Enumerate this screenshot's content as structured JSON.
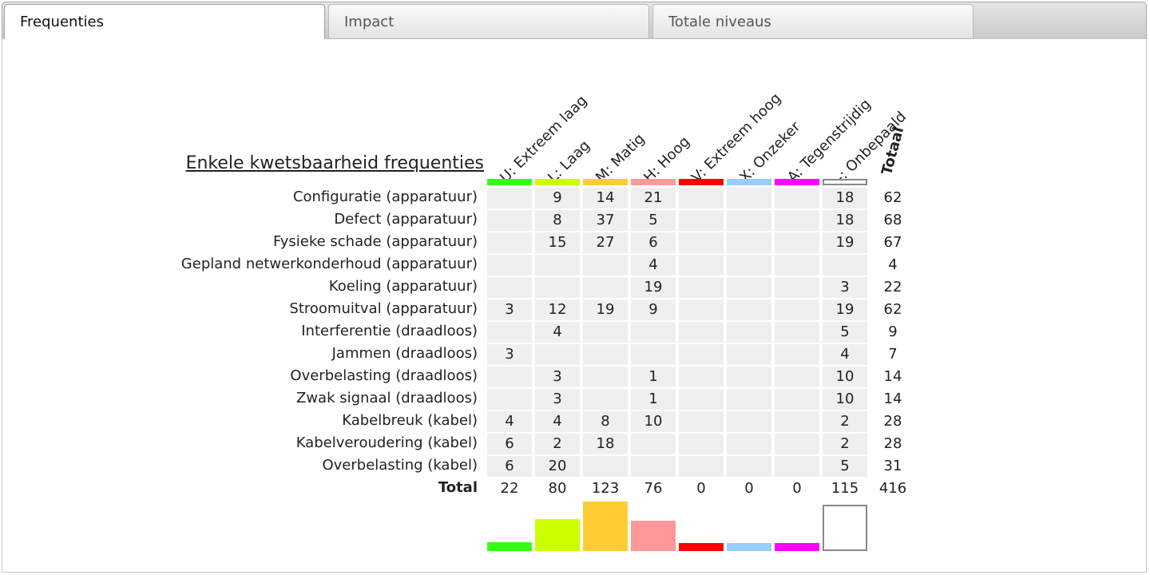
{
  "tabs": [
    {
      "label": "Frequenties",
      "active": true
    },
    {
      "label": "Impact",
      "active": false
    },
    {
      "label": "Totale niveaus",
      "active": false
    }
  ],
  "chart_data": {
    "type": "table",
    "title": "Enkele kwetsbaarheid frequenties",
    "columns": [
      {
        "label": "U: Extreem laag",
        "color": "#33ff11"
      },
      {
        "label": "L: Laag",
        "color": "#ccff00"
      },
      {
        "label": "M: Matig",
        "color": "#ffcc33"
      },
      {
        "label": "H: Hoog",
        "color": "#ff9999"
      },
      {
        "label": "V: Extreem hoog",
        "color": "#ff0000"
      },
      {
        "label": "X: Onzeker",
        "color": "#99ccff"
      },
      {
        "label": "A: Tegenstrijdig",
        "color": "#ff00ff"
      },
      {
        "label": "-: Onbepaald",
        "color": "#ffffff"
      }
    ],
    "total_header": "Totaal",
    "rows": [
      {
        "label": "Configuratie (apparatuur)",
        "values": [
          "",
          "9",
          "14",
          "21",
          "",
          "",
          "",
          "18"
        ],
        "total": "62"
      },
      {
        "label": "Defect (apparatuur)",
        "values": [
          "",
          "8",
          "37",
          "5",
          "",
          "",
          "",
          "18"
        ],
        "total": "68"
      },
      {
        "label": "Fysieke schade (apparatuur)",
        "values": [
          "",
          "15",
          "27",
          "6",
          "",
          "",
          "",
          "19"
        ],
        "total": "67"
      },
      {
        "label": "Gepland netwerkonderhoud (apparatuur)",
        "values": [
          "",
          "",
          "",
          "4",
          "",
          "",
          "",
          ""
        ],
        "total": "4"
      },
      {
        "label": "Koeling (apparatuur)",
        "values": [
          "",
          "",
          "",
          "19",
          "",
          "",
          "",
          "3"
        ],
        "total": "22"
      },
      {
        "label": "Stroomuitval (apparatuur)",
        "values": [
          "3",
          "12",
          "19",
          "9",
          "",
          "",
          "",
          "19"
        ],
        "total": "62"
      },
      {
        "label": "Interferentie (draadloos)",
        "values": [
          "",
          "4",
          "",
          "",
          "",
          "",
          "",
          "5"
        ],
        "total": "9"
      },
      {
        "label": "Jammen (draadloos)",
        "values": [
          "3",
          "",
          "",
          "",
          "",
          "",
          "",
          "4"
        ],
        "total": "7"
      },
      {
        "label": "Overbelasting (draadloos)",
        "values": [
          "",
          "3",
          "",
          "1",
          "",
          "",
          "",
          "10"
        ],
        "total": "14"
      },
      {
        "label": "Zwak signaal (draadloos)",
        "values": [
          "",
          "3",
          "",
          "1",
          "",
          "",
          "",
          "10"
        ],
        "total": "14"
      },
      {
        "label": "Kabelbreuk (kabel)",
        "values": [
          "4",
          "4",
          "8",
          "10",
          "",
          "",
          "",
          "2"
        ],
        "total": "28"
      },
      {
        "label": "Kabelveroudering (kabel)",
        "values": [
          "6",
          "2",
          "18",
          "",
          "",
          "",
          "",
          "2"
        ],
        "total": "28"
      },
      {
        "label": "Overbelasting (kabel)",
        "values": [
          "6",
          "20",
          "",
          "",
          "",
          "",
          "",
          "5"
        ],
        "total": "31"
      }
    ],
    "totals_label": "Total",
    "totals": [
      22,
      80,
      123,
      76,
      0,
      0,
      0,
      115
    ],
    "grand_total": 416
  }
}
